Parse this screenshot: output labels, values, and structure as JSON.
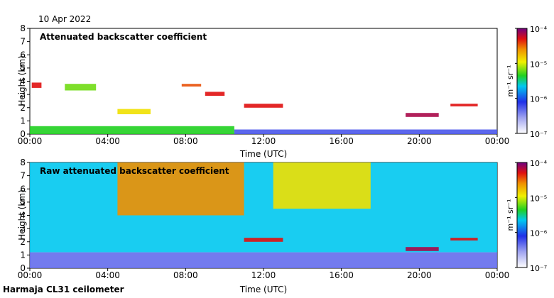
{
  "header": {
    "date": "10 Apr 2022"
  },
  "footer": {
    "instrument": "Harmaja CL31 ceilometer"
  },
  "chart_data": [
    {
      "type": "heatmap",
      "title": "Attenuated backscatter coefficient",
      "xlabel": "Time (UTC)",
      "ylabel": "Height (km)",
      "xlim": [
        0,
        24
      ],
      "ylim": [
        0,
        8
      ],
      "xticks": [
        "00:00",
        "04:00",
        "08:00",
        "12:00",
        "16:00",
        "20:00",
        "00:00"
      ],
      "yticks": [
        "0",
        "1",
        "2",
        "3",
        "4",
        "5",
        "6",
        "7",
        "8"
      ],
      "colorbar": {
        "unit": "m⁻¹ sr⁻¹",
        "scale": "log",
        "ticks": [
          "10⁻⁴",
          "10⁻⁵",
          "10⁻⁶",
          "10⁻⁷"
        ]
      },
      "layers": [
        {
          "t0": 0.0,
          "t1": 10.5,
          "h0": 0.0,
          "h1": 0.6,
          "level": 0.55
        },
        {
          "t0": 10.5,
          "t1": 24.0,
          "h0": 0.0,
          "h1": 0.35,
          "level": 0.25
        },
        {
          "t0": 0.1,
          "t1": 0.6,
          "h0": 3.5,
          "h1": 3.9,
          "level": 0.9
        },
        {
          "t0": 1.8,
          "t1": 3.4,
          "h0": 3.3,
          "h1": 3.8,
          "level": 0.6
        },
        {
          "t0": 4.5,
          "t1": 6.2,
          "h0": 1.5,
          "h1": 1.9,
          "level": 0.7
        },
        {
          "t0": 7.8,
          "t1": 8.8,
          "h0": 3.6,
          "h1": 3.8,
          "level": 0.85
        },
        {
          "t0": 9.0,
          "t1": 10.0,
          "h0": 2.9,
          "h1": 3.2,
          "level": 0.9
        },
        {
          "t0": 11.0,
          "t1": 13.0,
          "h0": 2.0,
          "h1": 2.3,
          "level": 0.9
        },
        {
          "t0": 19.3,
          "t1": 21.0,
          "h0": 1.3,
          "h1": 1.6,
          "level": 0.95
        },
        {
          "t0": 21.6,
          "t1": 23.0,
          "h0": 2.1,
          "h1": 2.3,
          "level": 0.9
        }
      ]
    },
    {
      "type": "heatmap",
      "title": "Raw attenuated backscatter coefficient",
      "xlabel": "Time (UTC)",
      "ylabel": "Height (km)",
      "xlim": [
        0,
        24
      ],
      "ylim": [
        0,
        8
      ],
      "xticks": [
        "00:00",
        "04:00",
        "08:00",
        "12:00",
        "16:00",
        "20:00",
        "00:00"
      ],
      "yticks": [
        "0",
        "1",
        "2",
        "3",
        "4",
        "5",
        "6",
        "7",
        "8"
      ],
      "colorbar": {
        "unit": "m⁻¹ sr⁻¹",
        "scale": "log",
        "ticks": [
          "10⁻⁴",
          "10⁻⁵",
          "10⁻⁶",
          "10⁻⁷"
        ]
      },
      "layers": [
        {
          "t0": 0.0,
          "t1": 24.0,
          "h0": 1.2,
          "h1": 8.0,
          "level": 0.45
        },
        {
          "t0": 4.5,
          "t1": 11.0,
          "h0": 4.0,
          "h1": 8.0,
          "level": 0.8
        },
        {
          "t0": 12.5,
          "t1": 17.5,
          "h0": 4.5,
          "h1": 8.0,
          "level": 0.7
        },
        {
          "t0": 0.0,
          "t1": 24.0,
          "h0": 0.0,
          "h1": 1.2,
          "level": 0.22
        },
        {
          "t0": 11.0,
          "t1": 13.0,
          "h0": 2.0,
          "h1": 2.3,
          "level": 0.9
        },
        {
          "t0": 19.3,
          "t1": 21.0,
          "h0": 1.3,
          "h1": 1.6,
          "level": 0.95
        },
        {
          "t0": 21.6,
          "t1": 23.0,
          "h0": 2.1,
          "h1": 2.3,
          "level": 0.9
        }
      ]
    }
  ]
}
